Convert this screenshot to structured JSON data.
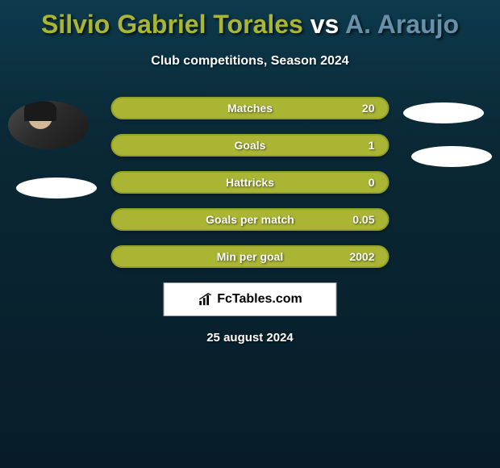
{
  "title_parts": {
    "player1": "Silvio Gabriel Torales",
    "vs": " vs ",
    "player2": "A. Araujo"
  },
  "title_colors": {
    "player1": "#aab534",
    "vs": "#ffffff",
    "player2": "#6a8fa8"
  },
  "subtitle": "Club competitions, Season 2024",
  "stats": [
    {
      "label": "Matches",
      "value": "20",
      "bar_color": "#aab534",
      "border_color": "#93a02a"
    },
    {
      "label": "Goals",
      "value": "1",
      "bar_color": "#aab534",
      "border_color": "#93a02a"
    },
    {
      "label": "Hattricks",
      "value": "0",
      "bar_color": "#aab534",
      "border_color": "#93a02a"
    },
    {
      "label": "Goals per match",
      "value": "0.05",
      "bar_color": "#aab534",
      "border_color": "#93a02a"
    },
    {
      "label": "Min per goal",
      "value": "2002",
      "bar_color": "#aab534",
      "border_color": "#93a02a"
    }
  ],
  "branding_text": "FcTables.com",
  "date": "25 august 2024",
  "styling": {
    "background_gradient_top": "#0d3a4d",
    "background_gradient_mid": "#0a2835",
    "background_gradient_bottom": "#071c28",
    "title_fontsize": 32,
    "subtitle_fontsize": 16,
    "stat_label_fontsize": 14,
    "stat_bar_height": 28,
    "stat_bar_gap": 18,
    "stats_width": 345,
    "oval_color": "#ffffff",
    "text_color": "#ffffff"
  }
}
